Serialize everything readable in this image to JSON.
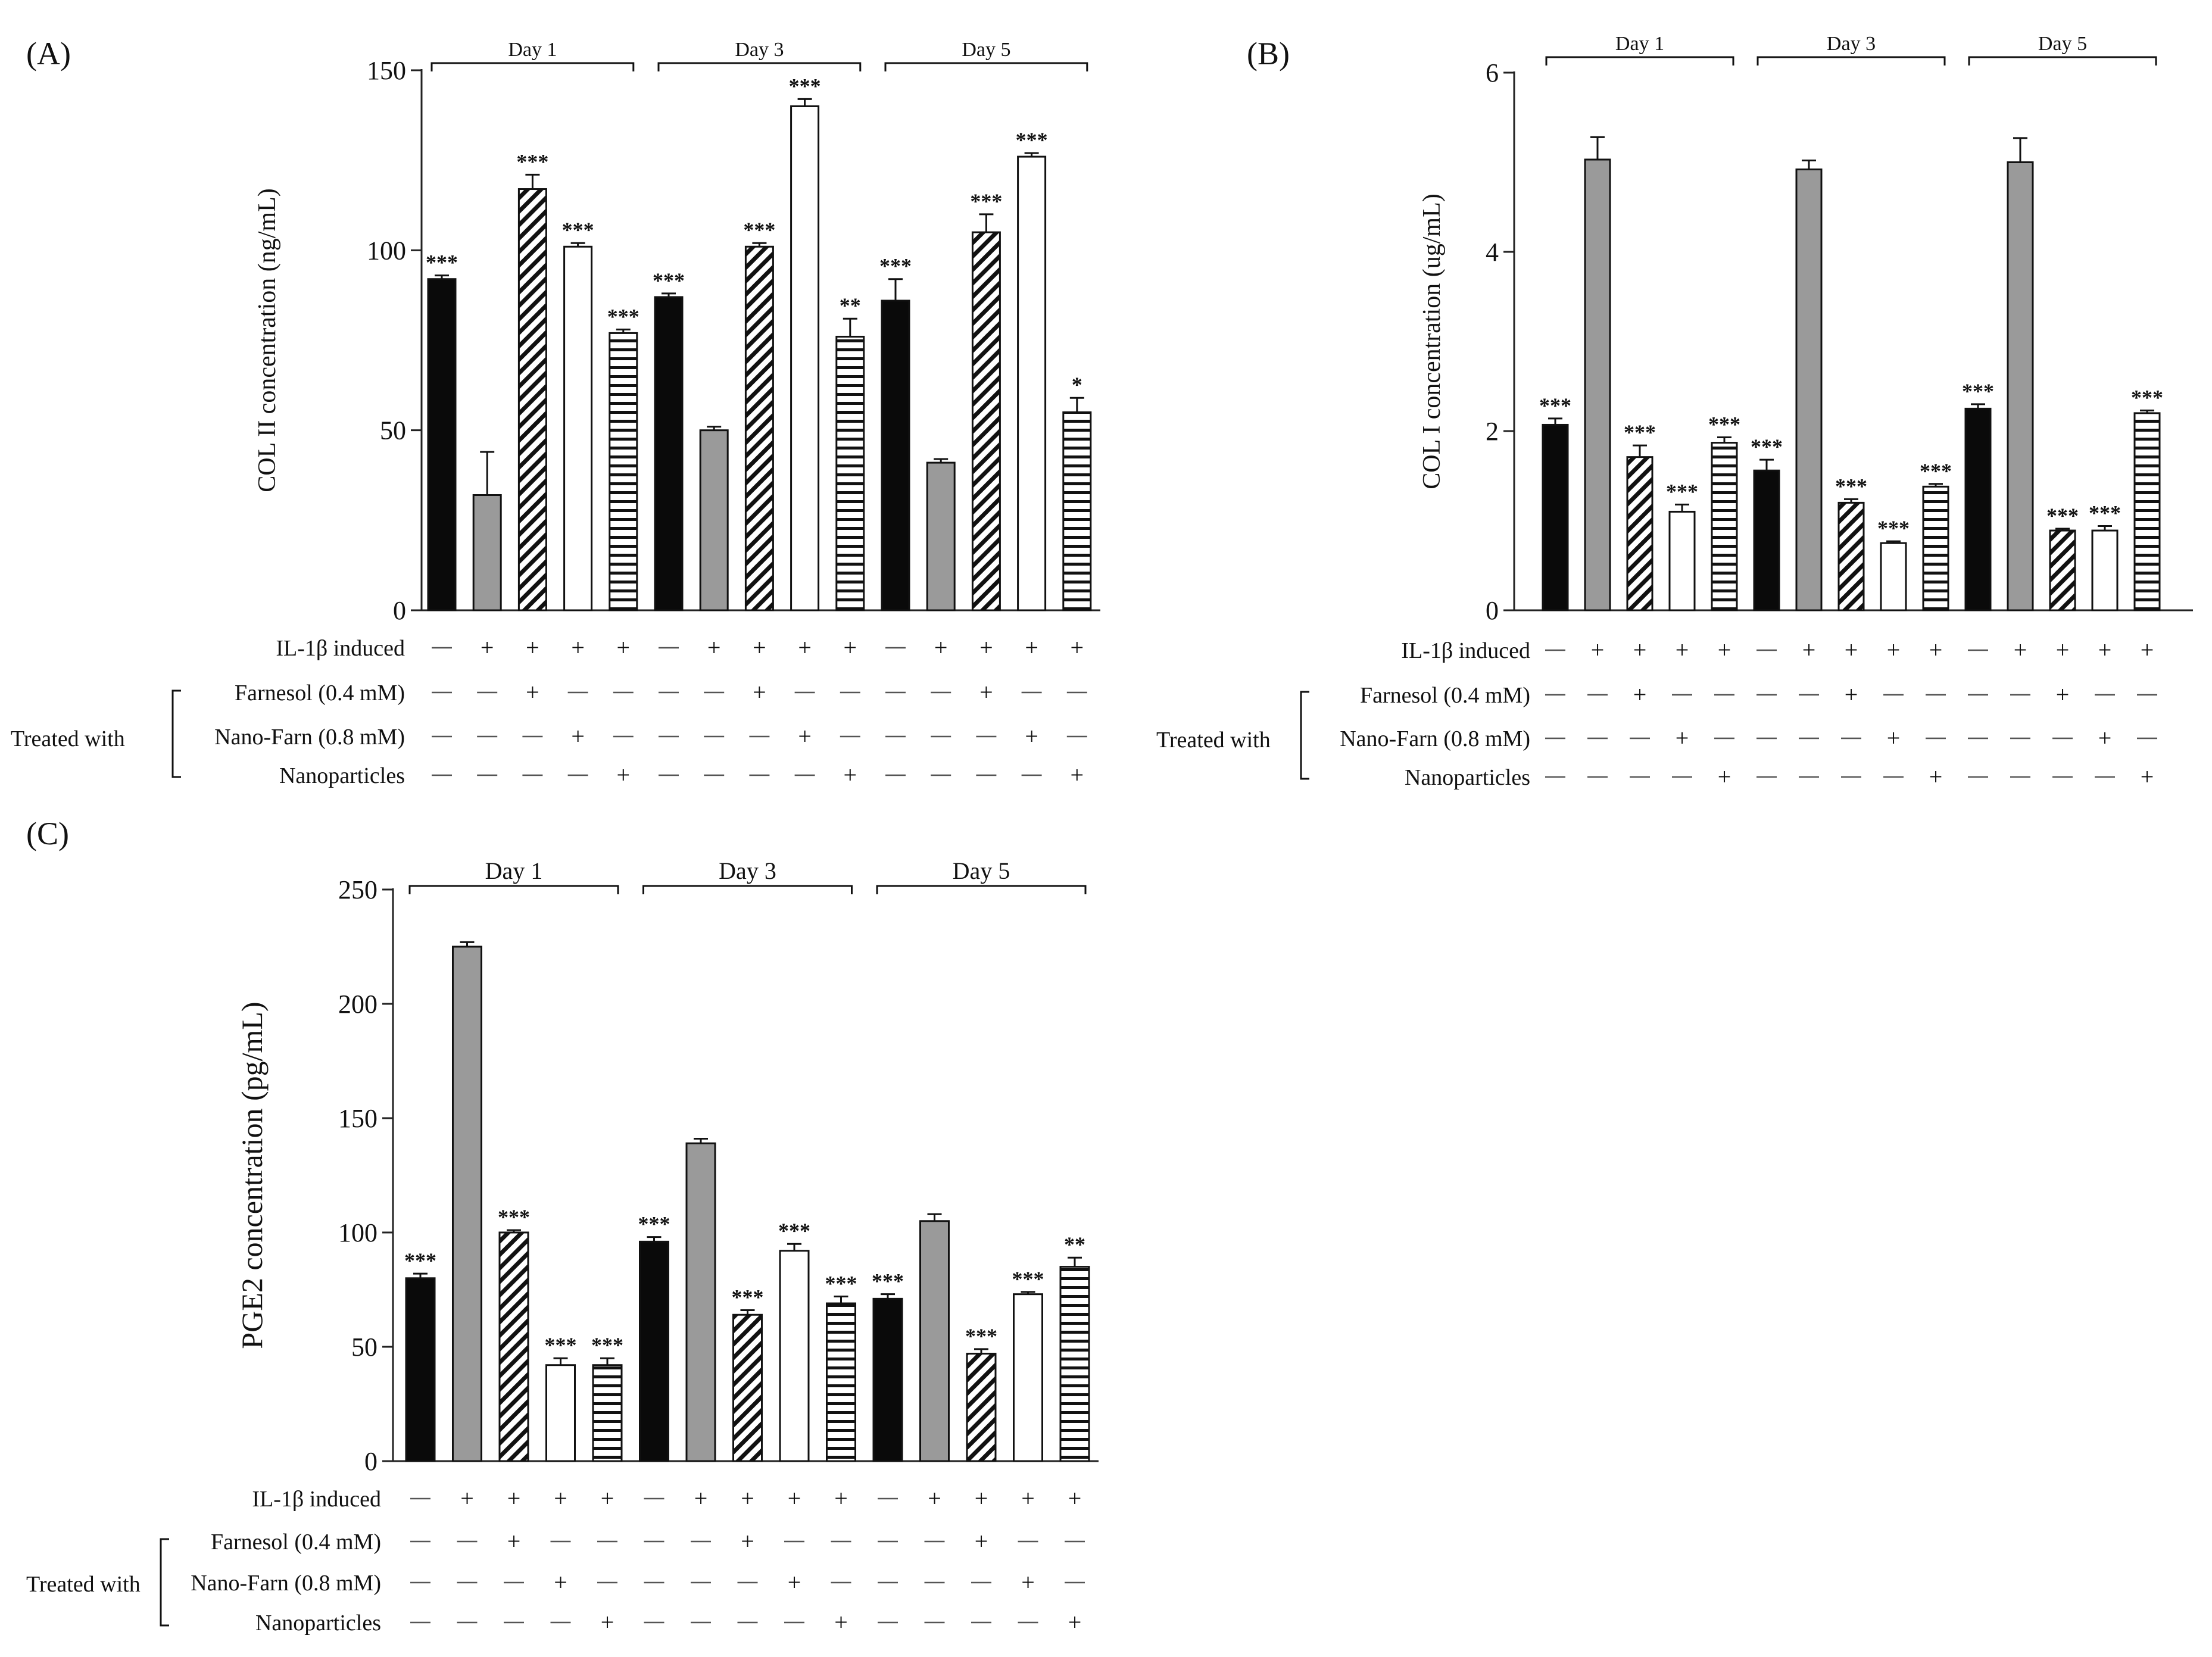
{
  "figure": {
    "row_labels": [
      "IL-1β induced",
      "Farnesol (0.4 mM)",
      "Nano-Farn (0.8 mM)",
      "Nanoparticles"
    ],
    "treated_with_label": "Treated with",
    "plus_sign": "+",
    "condition_pattern": [
      [
        "—",
        "+",
        "+",
        "+",
        "+"
      ],
      [
        "—",
        "—",
        "+",
        "—",
        "—"
      ],
      [
        "—",
        "—",
        "—",
        "+",
        "—"
      ],
      [
        "—",
        "—",
        "—",
        "—",
        "+"
      ]
    ],
    "bar_styles": [
      {
        "group": "control",
        "fill": "#0a0a0a"
      },
      {
        "group": "IL-1β",
        "fill": "#9a9a9a"
      },
      {
        "group": "Farnesol",
        "fill": "hatch-diagonal"
      },
      {
        "group": "Nano-Farn",
        "fill": "#ffffff"
      },
      {
        "group": "Nanoparticles",
        "fill": "hatch-horizontal"
      }
    ]
  },
  "chart_data": [
    {
      "panel_label": "(A)",
      "type": "bar",
      "ylabel": "COL II concentration (ng/mL)",
      "ylim": [
        0,
        150
      ],
      "yticks": [
        0,
        50,
        100,
        150
      ],
      "days": [
        "Day 1",
        "Day 3",
        "Day 5"
      ],
      "categories": [
        "Control",
        "IL-1β",
        "IL-1β + Farnesol (0.4 mM)",
        "IL-1β + Nano-Farn (0.8 mM)",
        "IL-1β + Nanoparticles"
      ],
      "values": [
        [
          92,
          32,
          117,
          101,
          77
        ],
        [
          87,
          50,
          101,
          140,
          76
        ],
        [
          86,
          41,
          105,
          126,
          55
        ]
      ],
      "errors": [
        [
          1,
          12,
          4,
          1,
          1
        ],
        [
          1,
          1,
          1,
          2,
          5
        ],
        [
          6,
          1,
          5,
          1,
          4
        ]
      ],
      "significance": [
        [
          "***",
          "",
          "***",
          "***",
          "***"
        ],
        [
          "***",
          "",
          "***",
          "***",
          "**"
        ],
        [
          "***",
          "",
          "***",
          "***",
          "*"
        ]
      ]
    },
    {
      "panel_label": "(B)",
      "type": "bar",
      "ylabel": "COL I concentration (ug/mL)",
      "ylim": [
        0,
        6
      ],
      "yticks": [
        0,
        2,
        4,
        6
      ],
      "days": [
        "Day 1",
        "Day 3",
        "Day 5"
      ],
      "categories": [
        "Control",
        "IL-1β",
        "IL-1β + Farnesol (0.4 mM)",
        "IL-1β + Nano-Farn (0.8 mM)",
        "IL-1β + Nanoparticles"
      ],
      "values": [
        [
          2.07,
          5.03,
          1.71,
          1.1,
          1.87
        ],
        [
          1.56,
          4.92,
          1.2,
          0.75,
          1.38
        ],
        [
          2.25,
          5.0,
          0.89,
          0.89,
          2.2
        ]
      ],
      "errors": [
        [
          0.07,
          0.25,
          0.13,
          0.08,
          0.06
        ],
        [
          0.12,
          0.1,
          0.04,
          0.02,
          0.03
        ],
        [
          0.05,
          0.27,
          0.02,
          0.05,
          0.03
        ]
      ],
      "significance": [
        [
          "***",
          "",
          "***",
          "***",
          "***"
        ],
        [
          "***",
          "",
          "***",
          "***",
          "***"
        ],
        [
          "***",
          "",
          "***",
          "***",
          "***"
        ]
      ]
    },
    {
      "panel_label": "(C)",
      "type": "bar",
      "ylabel": "PGE2 concentration (pg/mL)",
      "ylim": [
        0,
        250
      ],
      "yticks": [
        0,
        50,
        100,
        150,
        200,
        250
      ],
      "days": [
        "Day 1",
        "Day 3",
        "Day 5"
      ],
      "categories": [
        "Control",
        "IL-1β",
        "IL-1β + Farnesol (0.4 mM)",
        "IL-1β + Nano-Farn (0.8 mM)",
        "IL-1β + Nanoparticles"
      ],
      "values": [
        [
          80,
          225,
          100,
          42,
          42
        ],
        [
          96,
          139,
          64,
          92,
          69
        ],
        [
          71,
          105,
          47,
          73,
          85
        ]
      ],
      "errors": [
        [
          2,
          2,
          1,
          3,
          3
        ],
        [
          2,
          2,
          2,
          3,
          3
        ],
        [
          2,
          3,
          2,
          1,
          4
        ]
      ],
      "significance": [
        [
          "***",
          "",
          "***",
          "***",
          "***"
        ],
        [
          "***",
          "",
          "***",
          "***",
          "***"
        ],
        [
          "***",
          "",
          "***",
          "***",
          "**"
        ]
      ]
    }
  ]
}
